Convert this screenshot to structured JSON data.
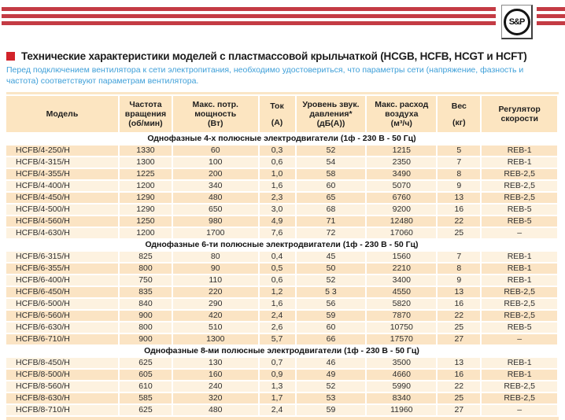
{
  "brand": {
    "logo_text": "S&P"
  },
  "header": {
    "title": "Технические характеристики моделей с пластмассовой крыльчаткой (HCGB, HCFB, HCGT и HCFT)",
    "subtitle": "Перед подключением вентилятора к сети электропитания, необходимо удостовериться, что параметры сети (напряжение, фазность и частота) соответствуют параметрам вентилятора."
  },
  "colors": {
    "stripe_red": "#C43B44",
    "bullet_red": "#D2232A",
    "subtitle_blue": "#3E9FD8",
    "table_header_bg": "#FCE5C1",
    "row_dark": "#FBE4C4",
    "row_light": "#FDF2E0"
  },
  "table": {
    "columns": [
      {
        "id": "model",
        "lines": [
          "Модель"
        ]
      },
      {
        "id": "rpm",
        "lines": [
          "Частота",
          "вращения",
          "(об/мин)"
        ]
      },
      {
        "id": "power",
        "lines": [
          "Макс. потр.",
          "мощность",
          "(Вт)"
        ]
      },
      {
        "id": "current",
        "lines": [
          "Ток",
          "",
          "(А)"
        ]
      },
      {
        "id": "noise",
        "lines": [
          "Уровень звук.",
          "давления*",
          "(дБ(А))"
        ]
      },
      {
        "id": "airflow",
        "lines": [
          "Макс. расход",
          "воздуха",
          "(м³/ч)"
        ]
      },
      {
        "id": "weight",
        "lines": [
          "Вес",
          "",
          "(кг)"
        ]
      },
      {
        "id": "regulator",
        "lines": [
          "Регулятор",
          "скорости"
        ]
      }
    ],
    "sections": [
      {
        "title": "Однофазные 4-х полюсные электродвигатели (1ф - 230 В - 50 Гц)",
        "rows": [
          [
            "HCFB/4-250/H",
            "1330",
            "60",
            "0,3",
            "52",
            "1215",
            "5",
            "REB-1"
          ],
          [
            "HCFB/4-315/H",
            "1300",
            "100",
            "0,6",
            "54",
            "2350",
            "7",
            "REB-1"
          ],
          [
            "HCFB/4-355/H",
            "1225",
            "200",
            "1,0",
            "58",
            "3490",
            "8",
            "REB-2,5"
          ],
          [
            "HCFB/4-400/H",
            "1200",
            "340",
            "1,6",
            "60",
            "5070",
            "9",
            "REB-2,5"
          ],
          [
            "HCFB/4-450/H",
            "1290",
            "480",
            "2,3",
            "65",
            "6760",
            "13",
            "REB-2,5"
          ],
          [
            "HCFB/4-500/H",
            "1290",
            "650",
            "3,0",
            "68",
            "9200",
            "16",
            "REB-5"
          ],
          [
            "HCFB/4-560/H",
            "1250",
            "980",
            "4,9",
            "71",
            "12480",
            "22",
            "REB-5"
          ],
          [
            "HCFB/4-630/H",
            "1200",
            "1700",
            "7,6",
            "72",
            "17060",
            "25",
            "–"
          ]
        ]
      },
      {
        "title": "Однофазные 6-ти полюсные электродвигатели (1ф - 230 В - 50 Гц)",
        "rows": [
          [
            "HCFB/6-315/H",
            "825",
            "80",
            "0,4",
            "45",
            "1560",
            "7",
            "REB-1"
          ],
          [
            "HCFB/6-355/H",
            "800",
            "90",
            "0,5",
            "50",
            "2210",
            "8",
            "REB-1"
          ],
          [
            "HCFB/6-400/H",
            "750",
            "110",
            "0,6",
            "52",
            "3400",
            "9",
            "REB-1"
          ],
          [
            "HCFB/6-450/H",
            "835",
            "220",
            "1,2",
            "5 3",
            "4550",
            "13",
            "REB-2,5"
          ],
          [
            "HCFB/6-500/H",
            "840",
            "290",
            "1,6",
            "56",
            "5820",
            "16",
            "REB-2,5"
          ],
          [
            "HCFB/6-560/H",
            "900",
            "420",
            "2,4",
            "59",
            "7870",
            "22",
            "REB-2,5"
          ],
          [
            "HCFB/6-630/H",
            "800",
            "510",
            "2,6",
            "60",
            "10750",
            "25",
            "REB-5"
          ],
          [
            "HCFB/6-710/H",
            "900",
            "1300",
            "5,7",
            "66",
            "17570",
            "27",
            "–"
          ]
        ]
      },
      {
        "title": "Однофазные 8-ми полюсные электродвигатели (1ф - 230 В - 50 Гц)",
        "rows": [
          [
            "HCFB/8-450/H",
            "625",
            "130",
            "0,7",
            "46",
            "3500",
            "13",
            "REB-1"
          ],
          [
            "HCFB/8-500/H",
            "605",
            "160",
            "0,9",
            "49",
            "4660",
            "16",
            "REB-1"
          ],
          [
            "HCFB/8-560/H",
            "610",
            "240",
            "1,3",
            "52",
            "5990",
            "22",
            "REB-2,5"
          ],
          [
            "HCFB/8-630/H",
            "585",
            "320",
            "1,7",
            "53",
            "8340",
            "25",
            "REB-2,5"
          ],
          [
            "HCFB/8-710/H",
            "625",
            "480",
            "2,4",
            "59",
            "11960",
            "27",
            "–"
          ]
        ]
      }
    ]
  }
}
